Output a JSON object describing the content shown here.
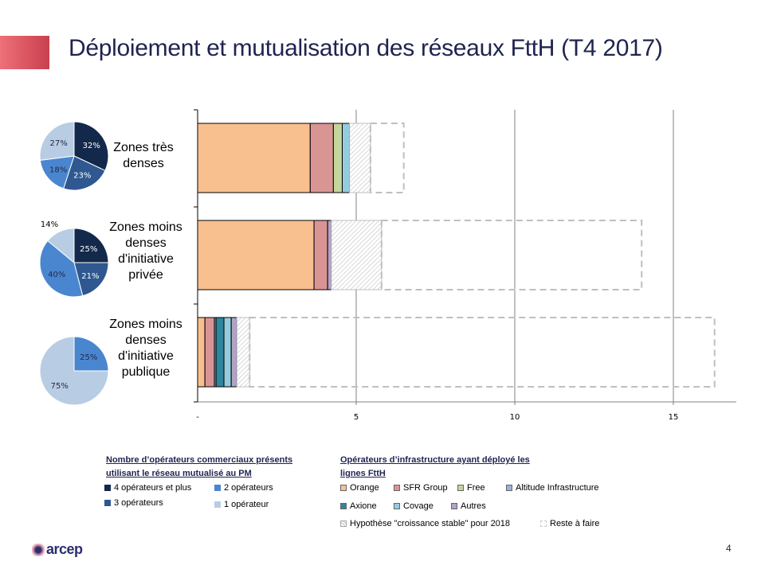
{
  "slide": {
    "title": "Déploiement et mutualisation des réseaux FttH (T4 2017)",
    "page_number": "4",
    "logo_text": "arcep",
    "accent_color": "#d9505c"
  },
  "legend_commercial": {
    "title": "Nombre d’opérateurs commerciaux présents utilisant le réseau mutualisé au PM",
    "items": [
      {
        "label": "4 opérateurs et plus",
        "color": "#13294b"
      },
      {
        "label": "2 opérateurs",
        "color": "#4a86d0"
      },
      {
        "label": "3 opérateurs",
        "color": "#2f5890"
      },
      {
        "label": "1 opérateur",
        "color": "#b8cce4"
      }
    ]
  },
  "legend_infra": {
    "title": "Opérateurs d’infrastructure ayant  déployé les lignes FttH",
    "items": [
      {
        "label": "Orange",
        "color": "#f9c08f"
      },
      {
        "label": "SFR Group",
        "color": "#d99594"
      },
      {
        "label": "Free",
        "color": "#c3d69b"
      },
      {
        "label": "Altitude Infrastructure",
        "color": "#95b3d7"
      },
      {
        "label": "Axione",
        "color": "#31859c"
      },
      {
        "label": "Covage",
        "color": "#93cddd"
      },
      {
        "label": "Autres",
        "color": "#b3a2c7"
      },
      {
        "label": "Hypothèse \"croissance stable\" pour 2018",
        "color": "hatch"
      },
      {
        "label": "Reste à faire",
        "color": "dashed"
      }
    ]
  },
  "chart_data": [
    {
      "type": "pie",
      "title": "Zones très denses",
      "slices": [
        {
          "label": "4 opérateurs et plus",
          "value": 32
        },
        {
          "label": "3 opérateurs",
          "value": 23
        },
        {
          "label": "2 opérateurs",
          "value": 18
        },
        {
          "label": "1 opérateur",
          "value": 27
        }
      ]
    },
    {
      "type": "pie",
      "title": "Zones moins denses d'initiative privée",
      "slices": [
        {
          "label": "4 opérateurs et plus",
          "value": 25
        },
        {
          "label": "3 opérateurs",
          "value": 21
        },
        {
          "label": "2 opérateurs",
          "value": 40
        },
        {
          "label": "1 opérateur",
          "value": 14
        }
      ]
    },
    {
      "type": "pie",
      "title": "Zones moins denses d'initiative publique",
      "slices": [
        {
          "label": "2 opérateurs",
          "value": 25
        },
        {
          "label": "1 opérateur",
          "value": 75
        }
      ]
    },
    {
      "type": "bar",
      "orientation": "horizontal",
      "stacked": true,
      "categories": [
        "Zones très denses",
        "Zones moins denses d'initiative privée",
        "Zones moins denses d'initiative publique"
      ],
      "series": [
        {
          "name": "Orange",
          "values": [
            3.55,
            3.67,
            0.23
          ]
        },
        {
          "name": "SFR Group",
          "values": [
            0.73,
            0.43,
            0.3
          ]
        },
        {
          "name": "Free",
          "values": [
            0.28,
            0,
            0
          ]
        },
        {
          "name": "Altitude Infrastructure",
          "values": [
            0,
            0,
            0.05
          ]
        },
        {
          "name": "Axione",
          "values": [
            0,
            0,
            0.25
          ]
        },
        {
          "name": "Covage",
          "values": [
            0.23,
            0,
            0.23
          ]
        },
        {
          "name": "Autres",
          "values": [
            0,
            0.12,
            0.18
          ]
        },
        {
          "name": "Hypothèse \"croissance stable\" pour 2018",
          "values": [
            0.66,
            1.58,
            0.4
          ]
        },
        {
          "name": "Reste à faire",
          "values": [
            1.05,
            8.2,
            14.66
          ]
        }
      ],
      "xlim": [
        0,
        17
      ],
      "xticks": [
        0,
        5,
        10,
        15
      ],
      "xtick_labels": [
        "-",
        "5",
        "10",
        "15"
      ],
      "grid": "vertical",
      "xlabel": "",
      "ylabel": ""
    }
  ]
}
